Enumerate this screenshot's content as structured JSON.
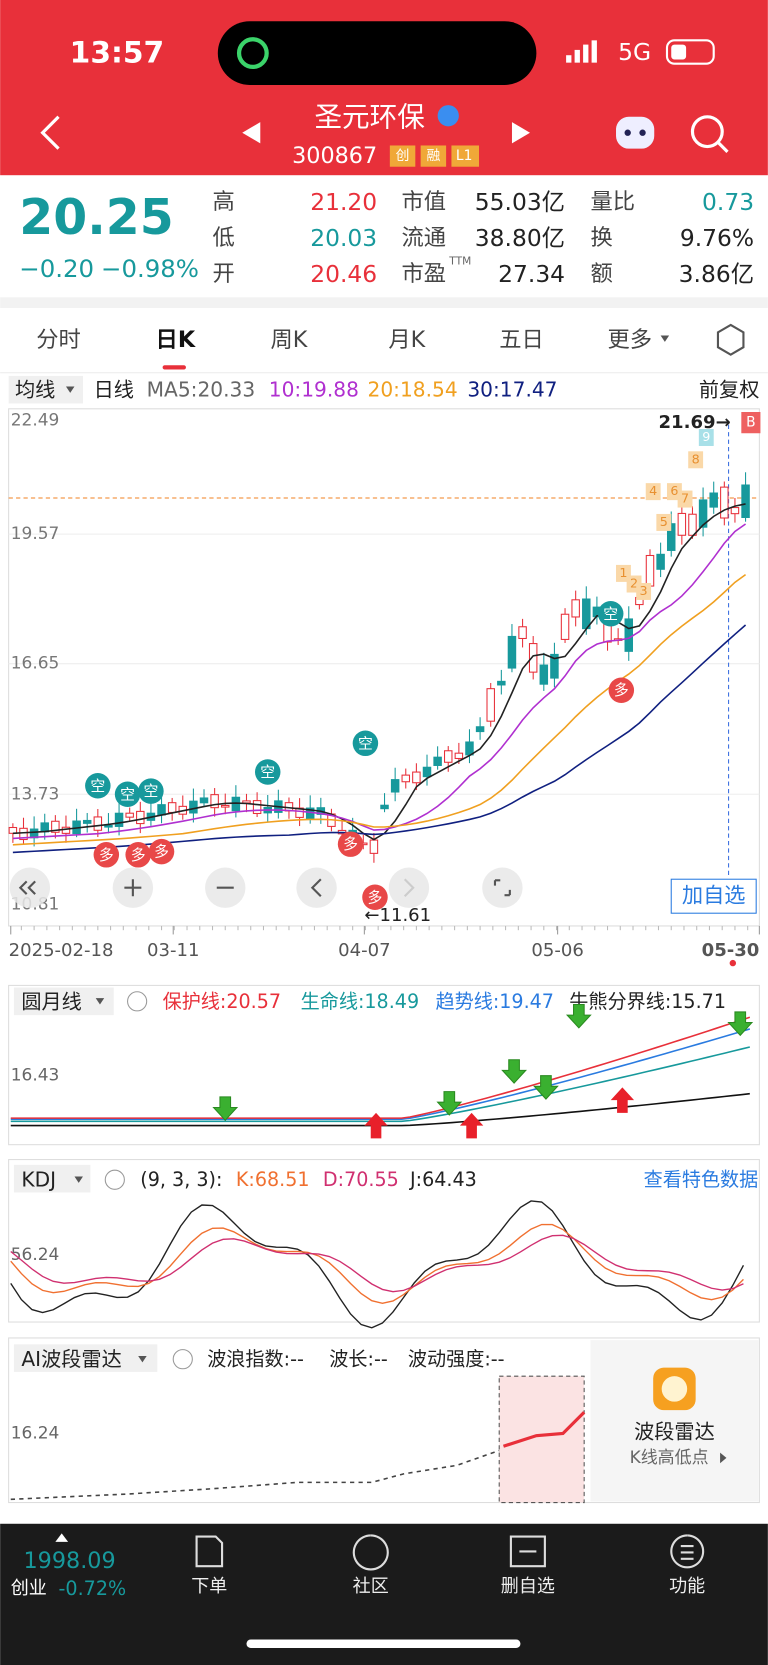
{
  "status": {
    "time": "13:57",
    "network": "5G"
  },
  "header": {
    "name": "圣元环保",
    "code": "300867",
    "badges": [
      "创",
      "融",
      "L1"
    ]
  },
  "quote": {
    "price": "20.25",
    "change": "−0.20",
    "pct": "−0.98%",
    "fields": [
      {
        "label": "高",
        "value": "21.20"
      },
      {
        "label": "低",
        "value": "20.03"
      },
      {
        "label": "开",
        "value": "20.46"
      },
      {
        "label": "市值",
        "value": "55.03亿"
      },
      {
        "label": "流通",
        "value": "38.80亿"
      },
      {
        "label": "市盈",
        "sup": "TTM",
        "value": "27.34"
      },
      {
        "label": "量比",
        "value": "0.73"
      },
      {
        "label": "换",
        "value": "9.76%"
      },
      {
        "label": "额",
        "value": "3.86亿"
      }
    ]
  },
  "tabs": [
    "分时",
    "日K",
    "周K",
    "月K",
    "五日",
    "更多"
  ],
  "kline": {
    "indicator": "均线",
    "period": "日线",
    "ma": [
      "MA5:20.33",
      "10:19.88",
      "20:18.54",
      "30:17.47"
    ],
    "adjust": "前复权",
    "yticks": [
      "22.49",
      "19.57",
      "16.65",
      "13.73",
      "10.81"
    ],
    "high": "21.69→",
    "low": "←11.61",
    "dates": [
      "2025-02-18",
      "03-11",
      "04-07",
      "05-06",
      "05-30"
    ],
    "signals": {
      "short": "空",
      "long": "多"
    },
    "markers": [
      "1",
      "2",
      "3",
      "4",
      "5",
      "6",
      "7",
      "8",
      "9"
    ],
    "buy": "B",
    "add": "加自选"
  },
  "yuanyue": {
    "name": "圆月线",
    "lines": [
      "保护线:20.57",
      "生命线:18.49",
      "趋势线:19.47",
      "牛熊分界线:15.71"
    ],
    "ytick": "16.43"
  },
  "kdj": {
    "name": "KDJ",
    "params": "(9, 3, 3):",
    "k": "K:68.51",
    "d": "D:70.55",
    "j": "J:64.43",
    "link": "查看特色数据",
    "ytick": "56.24"
  },
  "ai": {
    "name": "AI波段雷达",
    "fields": [
      "波浪指数:--",
      "波长:--",
      "波动强度:--"
    ],
    "ytick": "16.24",
    "promo_title": "波段雷达",
    "promo_sub": "K线高低点"
  },
  "bottom": {
    "index_value": "1998.09",
    "index_name": "创业",
    "index_pct": "-0.72%",
    "nav": [
      "下单",
      "社区",
      "删自选",
      "功能"
    ]
  }
}
